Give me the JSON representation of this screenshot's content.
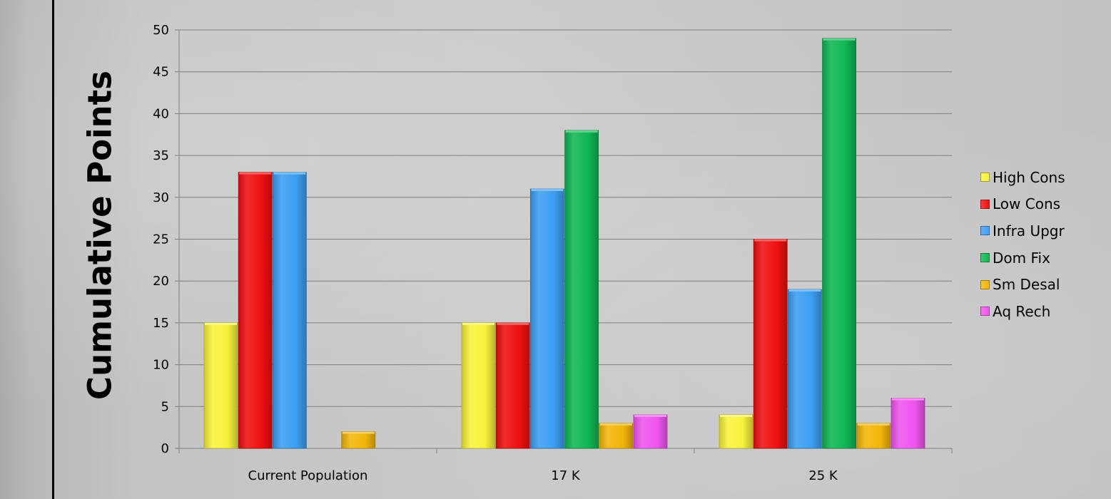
{
  "chart_data": {
    "type": "bar",
    "title": "",
    "xlabel": "",
    "ylabel": "Cumulative Points",
    "ylim": [
      0,
      50
    ],
    "yticks": [
      0,
      5,
      10,
      15,
      20,
      25,
      30,
      35,
      40,
      45,
      50
    ],
    "grid": true,
    "legend_position": "right",
    "categories": [
      "Current Population",
      "17 K",
      "25 K"
    ],
    "series": [
      {
        "name": "High Cons",
        "color": "#f7f23c",
        "values": [
          15,
          15,
          4
        ]
      },
      {
        "name": "Low Cons",
        "color": "#ee1010",
        "values": [
          33,
          15,
          25
        ]
      },
      {
        "name": "Infra Upgr",
        "color": "#3d9ef2",
        "values": [
          33,
          31,
          19
        ]
      },
      {
        "name": "Dom Fix",
        "color": "#10b654",
        "values": [
          0,
          38,
          49
        ]
      },
      {
        "name": "Sm Desal",
        "color": "#f2b60a",
        "values": [
          2,
          3,
          3
        ]
      },
      {
        "name": "Aq Rech",
        "color": "#ef55ef",
        "values": [
          0,
          4,
          6
        ]
      }
    ]
  }
}
